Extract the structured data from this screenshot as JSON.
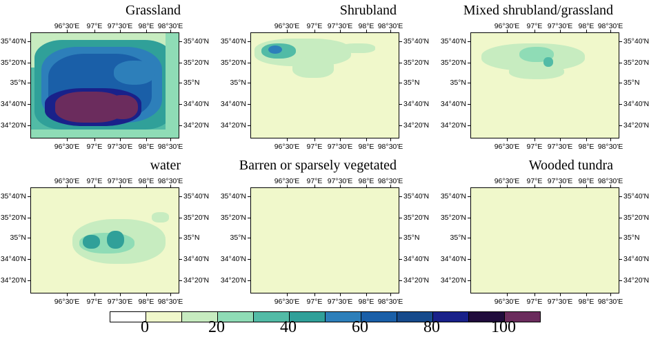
{
  "panels": [
    {
      "title": "Grassland"
    },
    {
      "title": "Shrubland"
    },
    {
      "title": "Mixed shrubland/grassland"
    },
    {
      "title": "water"
    },
    {
      "title": "Barren or sparsely vegetated"
    },
    {
      "title": "Wooded tundra"
    }
  ],
  "axes": {
    "lon_labels": [
      "96°30'E",
      "97°E",
      "97°30'E",
      "98°E",
      "98°30'E"
    ],
    "lat_labels": [
      "35°40'N",
      "35°20'N",
      "35°N",
      "34°40'N",
      "34°20'N"
    ]
  },
  "colorbar": {
    "colors": [
      "#ffffff",
      "#f0f8cb",
      "#c7ecc0",
      "#8fdcb6",
      "#52bba6",
      "#30a099",
      "#2d7fba",
      "#1a5fa8",
      "#164a8c",
      "#19218a",
      "#200c3c",
      "#6b2c5d"
    ],
    "tick_labels": [
      "0",
      "20",
      "40",
      "60",
      "80",
      "100"
    ]
  },
  "chart_data": {
    "type": "heatmap",
    "units_range": [
      0,
      100
    ],
    "panels": [
      {
        "title": "Grassland",
        "summary_level": "high",
        "max": 100
      },
      {
        "title": "Shrubland",
        "summary_level": "low",
        "max": 45
      },
      {
        "title": "Mixed shrubland/grassland",
        "summary_level": "low",
        "max": 40
      },
      {
        "title": "water",
        "summary_level": "low",
        "max": 50
      },
      {
        "title": "Barren or sparsely vegetated",
        "summary_level": "near zero",
        "max": 5
      },
      {
        "title": "Wooded tundra",
        "summary_level": "near zero",
        "max": 5
      }
    ],
    "lon_ticks": [
      "96°30'E",
      "97°E",
      "97°30'E",
      "98°E",
      "98°30'E"
    ],
    "lat_ticks": [
      "35°40'N",
      "35°20'N",
      "35°N",
      "34°40'N",
      "34°20'N"
    ]
  }
}
